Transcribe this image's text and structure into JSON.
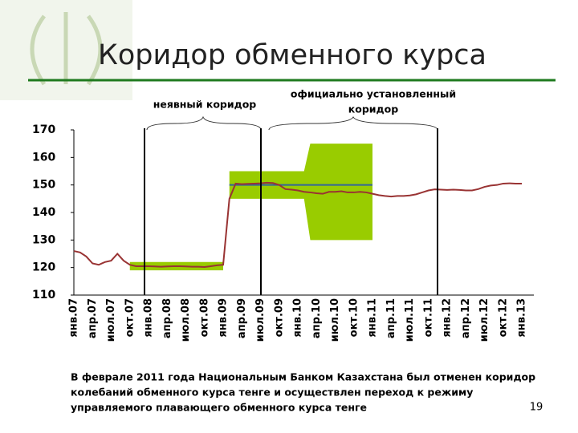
{
  "title": "Коридор обменного курса",
  "caption": [
    "В феврале 2011 года Национальным Банком Казахстана был отменен коридор",
    "колебаний обменного курса тенге и осуществлен переход к режиму",
    "управляемого плавающего обменного курса тенге"
  ],
  "page_number": "19",
  "chart_data": {
    "type": "line",
    "annotations": [
      "неявный коридор",
      "официально установленный",
      "коридор"
    ],
    "categories": [
      "янв.07",
      null,
      null,
      "апр.07",
      null,
      null,
      "июл.07",
      null,
      null,
      "окт.07",
      null,
      null,
      "янв.08",
      null,
      null,
      "апр.08",
      null,
      null,
      "июл.08",
      null,
      null,
      "окт.08",
      null,
      null,
      "янв.09",
      null,
      null,
      "апр.09",
      null,
      null,
      "июл.09",
      null,
      null,
      "окт.09",
      null,
      null,
      "янв.10",
      null,
      null,
      "апр.10",
      null,
      null,
      "июл.10",
      null,
      null,
      "окт.10",
      null,
      null,
      "янв.11",
      null,
      null,
      "апр.11",
      null,
      null,
      "июл.11",
      null,
      null,
      "окт.11",
      null,
      null,
      "янв.12",
      null,
      null,
      "апр.12",
      null,
      null,
      "июл.12",
      null,
      null,
      "окт.12",
      null,
      null,
      "янв.13"
    ],
    "ylim": [
      110,
      170
    ],
    "yticks": [
      110,
      120,
      130,
      140,
      150,
      160,
      170
    ],
    "bands": [
      {
        "color": "#99cc00",
        "lower": [
          null,
          null,
          null,
          null,
          null,
          null,
          null,
          null,
          null,
          119,
          119,
          119,
          119,
          119,
          119,
          119,
          119,
          119,
          119,
          119,
          119,
          119,
          119,
          119,
          119,
          null,
          null,
          null,
          null,
          null,
          null,
          null,
          null,
          null,
          null,
          null,
          null,
          null,
          null,
          null,
          null,
          null,
          null,
          null,
          null,
          null,
          null,
          null,
          null,
          null,
          null,
          null,
          null,
          null,
          null,
          null,
          null,
          null,
          null,
          null,
          null,
          null,
          null,
          null,
          null,
          null,
          null,
          null,
          null,
          null,
          null,
          null,
          null
        ],
        "upper": [
          null,
          null,
          null,
          null,
          null,
          null,
          null,
          null,
          null,
          122,
          122,
          122,
          122,
          122,
          122,
          122,
          122,
          122,
          122,
          122,
          122,
          122,
          122,
          122,
          122,
          null,
          null,
          null,
          null,
          null,
          null,
          null,
          null,
          null,
          null,
          null,
          null,
          null,
          null,
          null,
          null,
          null,
          null,
          null,
          null,
          null,
          null,
          null,
          null,
          null,
          null,
          null,
          null,
          null,
          null,
          null,
          null,
          null,
          null,
          null,
          null,
          null,
          null,
          null,
          null,
          null,
          null,
          null,
          null,
          null,
          null,
          null,
          null
        ]
      },
      {
        "color": "#99cc00",
        "lower": [
          null,
          null,
          null,
          null,
          null,
          null,
          null,
          null,
          null,
          null,
          null,
          null,
          null,
          null,
          null,
          null,
          null,
          null,
          null,
          null,
          null,
          null,
          null,
          null,
          null,
          145,
          145,
          145,
          145,
          145,
          145,
          145,
          145,
          145,
          145,
          145,
          145,
          145,
          130,
          130,
          130,
          130,
          130,
          130,
          130,
          130,
          130,
          130,
          130,
          null,
          null,
          null,
          null,
          null,
          null,
          null,
          null,
          null,
          null,
          null,
          null,
          null,
          null,
          null,
          null,
          null,
          null,
          null,
          null,
          null,
          null,
          null,
          null
        ],
        "upper": [
          null,
          null,
          null,
          null,
          null,
          null,
          null,
          null,
          null,
          null,
          null,
          null,
          null,
          null,
          null,
          null,
          null,
          null,
          null,
          null,
          null,
          null,
          null,
          null,
          null,
          155,
          155,
          155,
          155,
          155,
          155,
          155,
          155,
          155,
          155,
          155,
          155,
          155,
          165,
          165,
          165,
          165,
          165,
          165,
          165,
          165,
          165,
          165,
          165,
          null,
          null,
          null,
          null,
          null,
          null,
          null,
          null,
          null,
          null,
          null,
          null,
          null,
          null,
          null,
          null,
          null,
          null,
          null,
          null,
          null,
          null,
          null,
          null
        ]
      }
    ],
    "series": [
      {
        "color": "#336699",
        "values": [
          null,
          null,
          null,
          null,
          null,
          null,
          null,
          null,
          null,
          null,
          null,
          null,
          null,
          null,
          null,
          null,
          null,
          null,
          null,
          null,
          null,
          null,
          null,
          null,
          null,
          150,
          150,
          150,
          150,
          150,
          150,
          150,
          150,
          150,
          150,
          150,
          150,
          150,
          150,
          150,
          150,
          150,
          150,
          150,
          150,
          150,
          150,
          150,
          150,
          null,
          null,
          null,
          null,
          null,
          null,
          null,
          null,
          null,
          null,
          null,
          null,
          null,
          null,
          null,
          null,
          null,
          null,
          null,
          null,
          null,
          null,
          null,
          null
        ]
      },
      {
        "color": "#993333",
        "values": [
          126,
          125.5,
          124,
          121.5,
          121,
          122,
          122.5,
          125,
          122.5,
          121,
          120.5,
          120.5,
          120.5,
          120.4,
          120.3,
          120.4,
          120.5,
          120.5,
          120.4,
          120.3,
          120.3,
          120.2,
          120.5,
          120.8,
          121,
          145,
          150.5,
          150.3,
          150.4,
          150.5,
          150.6,
          150.8,
          150.7,
          150,
          148.5,
          148.3,
          148,
          147.5,
          147.3,
          147,
          146.8,
          147.5,
          147.5,
          147.7,
          147.3,
          147.3,
          147.5,
          147.3,
          146.8,
          146.3,
          146,
          145.8,
          146,
          146,
          146.2,
          146.6,
          147.3,
          148,
          148.4,
          148.3,
          148.2,
          148.3,
          148.2,
          148,
          148,
          148.5,
          149.3,
          149.8,
          150,
          150.5,
          150.6,
          150.5,
          150.5
        ]
      }
    ]
  }
}
